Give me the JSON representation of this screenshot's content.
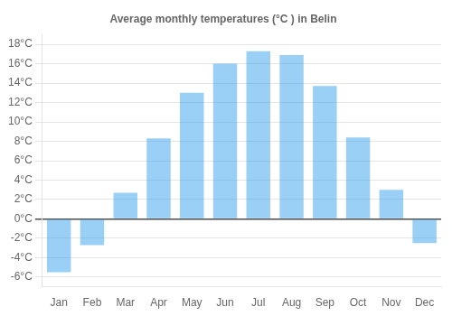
{
  "chart_data": {
    "type": "bar",
    "title": "Average monthly temperatures (°C ) in Belin",
    "categories": [
      "Jan",
      "Feb",
      "Mar",
      "Apr",
      "May",
      "Jun",
      "Jul",
      "Aug",
      "Sep",
      "Oct",
      "Nov",
      "Dec"
    ],
    "values": [
      -5.5,
      -2.7,
      2.7,
      8.3,
      13.0,
      16.0,
      17.3,
      16.9,
      13.7,
      8.4,
      3.0,
      -2.5
    ],
    "ylim": [
      -7,
      19
    ],
    "yticks": [
      {
        "value": -6,
        "label": "-6°C"
      },
      {
        "value": -4,
        "label": "-4°C"
      },
      {
        "value": -2,
        "label": "-2°C"
      },
      {
        "value": 0,
        "label": "0°C"
      },
      {
        "value": 2,
        "label": "2°C"
      },
      {
        "value": 4,
        "label": "4°C"
      },
      {
        "value": 6,
        "label": "6°C"
      },
      {
        "value": 8,
        "label": "8°C"
      },
      {
        "value": 10,
        "label": "10°C"
      },
      {
        "value": 12,
        "label": "12°C"
      },
      {
        "value": 14,
        "label": "14°C"
      },
      {
        "value": 16,
        "label": "16°C"
      },
      {
        "value": 18,
        "label": "18°C"
      }
    ],
    "grid": true
  }
}
